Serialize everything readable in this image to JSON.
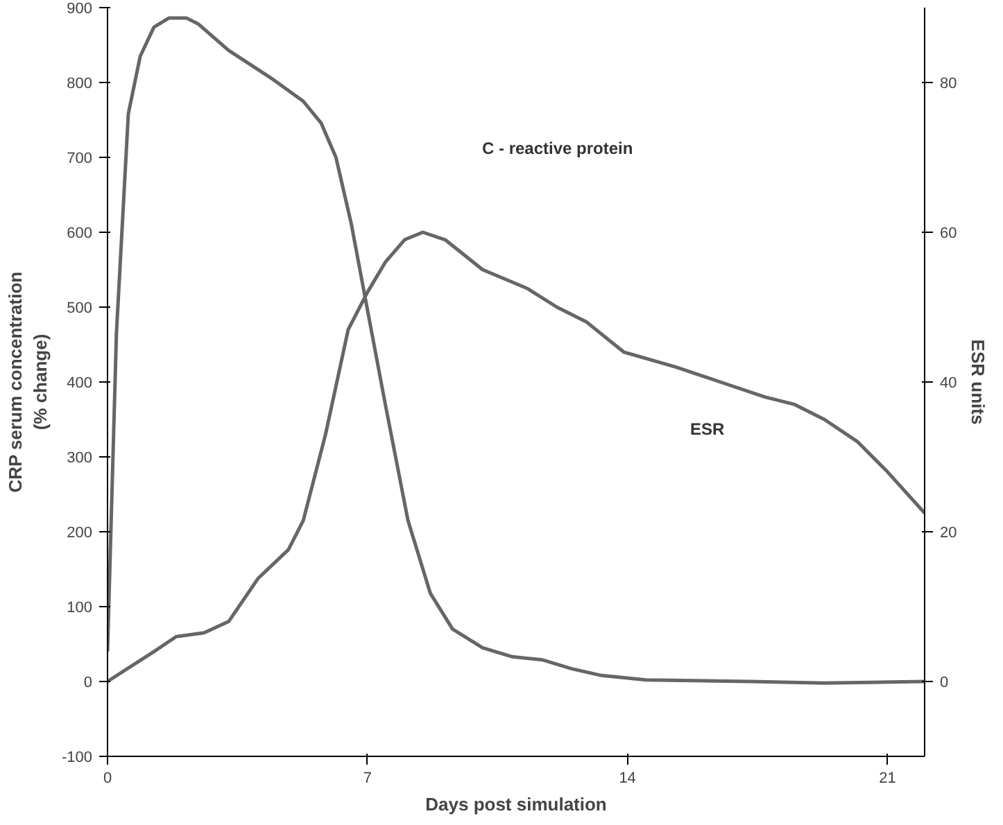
{
  "chart_data": {
    "type": "line",
    "xlabel": "Days post simulation",
    "ylabel": "CRP serum concentration\n(% change)",
    "y2label": "ESR units",
    "xlim": [
      0,
      22
    ],
    "xticks": [
      0,
      7,
      14,
      21
    ],
    "ylim": [
      -100,
      900
    ],
    "yticks": [
      -100,
      0,
      100,
      200,
      300,
      400,
      500,
      600,
      700,
      800,
      900
    ],
    "y2lim": [
      -10,
      90
    ],
    "y2ticks": [
      0,
      20,
      40,
      60,
      80
    ],
    "grid": false,
    "marker": "none",
    "line_style": "solid",
    "series": [
      {
        "color": "#666666",
        "x": [
          0,
          0.24,
          0.56,
          0.88,
          1.25,
          1.65,
          2.13,
          2.45,
          3.26,
          4.46,
          5.27,
          5.75,
          6.15,
          6.56,
          7,
          7.48,
          8.09,
          8.69,
          9.29,
          10.1,
          10.9,
          11.7,
          12.5,
          13.3,
          14.5,
          17.3,
          19.3,
          22
        ],
        "values": [
          40,
          465,
          758,
          835,
          874,
          886,
          886,
          878,
          843,
          804,
          775,
          746,
          700,
          612,
          496,
          370,
          215,
          118,
          70,
          45,
          33,
          29,
          17,
          8,
          2,
          0,
          -2,
          0
        ]
      },
      {
        "color": "#666666",
        "axis": "y2",
        "x": [
          0,
          1.25,
          1.85,
          2.6,
          3.26,
          4.06,
          4.87,
          5.27,
          5.87,
          6.48,
          7,
          7.48,
          8,
          8.49,
          9.09,
          10.1,
          11.3,
          12.1,
          12.9,
          13.9,
          15.3,
          16.5,
          17.7,
          18.5,
          19.3,
          20.2,
          21,
          22
        ],
        "values": [
          0,
          4,
          6,
          6.5,
          8,
          13.8,
          17.6,
          21.5,
          33,
          47,
          52,
          56,
          59,
          60,
          59,
          55,
          52.5,
          50,
          48,
          44,
          42,
          40,
          38,
          37,
          35,
          32,
          28,
          22.5
        ]
      }
    ],
    "annotations": [
      "C - reactive protein",
      "ESR"
    ]
  }
}
